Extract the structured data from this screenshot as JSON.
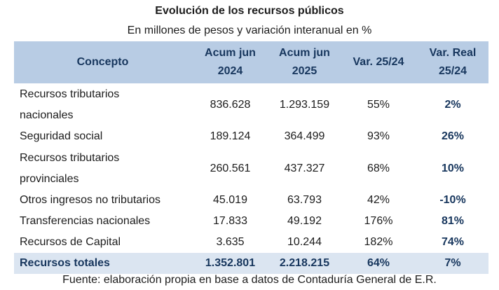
{
  "title": "Evolución de los recursos públicos",
  "subtitle": "En millones de pesos y variación interanual en %",
  "headers": {
    "concepto": "Concepto",
    "acum2024": [
      "Acum jun",
      "2024"
    ],
    "acum2025": [
      "Acum jun",
      "2025"
    ],
    "var": "Var. 25/24",
    "var_real": [
      "Var. Real",
      "25/24"
    ]
  },
  "rows": [
    {
      "concepto": [
        "Recursos tributarios",
        "nacionales"
      ],
      "acum2024": "836.628",
      "acum2025": "1.293.159",
      "var": "55%",
      "var_real": "2%"
    },
    {
      "concepto": [
        "Seguridad social"
      ],
      "acum2024": "189.124",
      "acum2025": "364.499",
      "var": "93%",
      "var_real": "26%"
    },
    {
      "concepto": [
        "Recursos tributarios",
        "provinciales"
      ],
      "acum2024": "260.561",
      "acum2025": "437.327",
      "var": "68%",
      "var_real": "10%"
    },
    {
      "concepto": [
        "Otros ingresos no tributarios"
      ],
      "acum2024": "45.019",
      "acum2025": "63.793",
      "var": "42%",
      "var_real": "-10%"
    },
    {
      "concepto": [
        "Transferencias nacionales"
      ],
      "acum2024": "17.833",
      "acum2025": "49.192",
      "var": "176%",
      "var_real": "81%"
    },
    {
      "concepto": [
        "Recursos de Capital"
      ],
      "acum2024": "3.635",
      "acum2025": "10.244",
      "var": "182%",
      "var_real": "74%"
    }
  ],
  "total": {
    "concepto": "Recursos totales",
    "acum2024": "1.352.801",
    "acum2025": "2.218.215",
    "var": "64%",
    "var_real": "7%"
  },
  "source": "Fuente: elaboración propia en base a datos de Contaduría General de E.R.",
  "colors": {
    "header_bg": "#b8cce4",
    "total_bg": "#dbe5f1",
    "accent_text": "#17365d"
  }
}
